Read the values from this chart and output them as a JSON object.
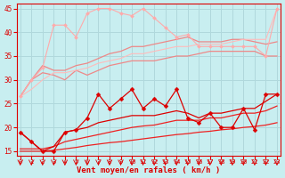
{
  "xlabel": "Vent moyen/en rafales ( km/h )",
  "bg_color": "#c8eef0",
  "grid_color": "#b0d8dc",
  "ylim": [
    14,
    46
  ],
  "xlim": [
    -0.3,
    23.3
  ],
  "yticks": [
    15,
    20,
    25,
    30,
    35,
    40,
    45
  ],
  "xticks": [
    0,
    1,
    2,
    3,
    4,
    5,
    6,
    7,
    8,
    9,
    10,
    11,
    12,
    13,
    14,
    15,
    16,
    17,
    18,
    19,
    20,
    21,
    22,
    23
  ],
  "series": [
    {
      "x": [
        0,
        1,
        2,
        3,
        4,
        5,
        6,
        7,
        8,
        9,
        10,
        11,
        12,
        13,
        14,
        15,
        16,
        17,
        18,
        19,
        20,
        21,
        22,
        23
      ],
      "y": [
        15.0,
        15.0,
        15.0,
        15.2,
        15.5,
        15.8,
        16.2,
        16.5,
        16.8,
        17.0,
        17.3,
        17.6,
        17.9,
        18.2,
        18.5,
        18.7,
        19.0,
        19.2,
        19.5,
        19.7,
        20.0,
        20.2,
        20.5,
        21.0
      ],
      "color": "#ee2222",
      "lw": 0.9,
      "marker": null,
      "ms": 0
    },
    {
      "x": [
        0,
        1,
        2,
        3,
        4,
        5,
        6,
        7,
        8,
        9,
        10,
        11,
        12,
        13,
        14,
        15,
        16,
        17,
        18,
        19,
        20,
        21,
        22,
        23
      ],
      "y": [
        15.5,
        15.5,
        15.5,
        16.0,
        17.0,
        17.5,
        18.0,
        18.5,
        19.0,
        19.5,
        20.0,
        20.3,
        20.5,
        21.0,
        21.5,
        21.5,
        21.5,
        22.0,
        22.0,
        22.5,
        23.0,
        23.0,
        23.5,
        24.5
      ],
      "color": "#ee2222",
      "lw": 0.9,
      "marker": null,
      "ms": 0
    },
    {
      "x": [
        0,
        1,
        2,
        3,
        4,
        5,
        6,
        7,
        8,
        9,
        10,
        11,
        12,
        13,
        14,
        15,
        16,
        17,
        18,
        19,
        20,
        21,
        22,
        23
      ],
      "y": [
        19.0,
        17.0,
        15.0,
        15.0,
        19.0,
        19.5,
        22.0,
        27.0,
        24.0,
        26.0,
        28.0,
        24.0,
        26.0,
        24.5,
        28.0,
        22.0,
        21.0,
        23.0,
        20.0,
        20.0,
        24.0,
        19.5,
        27.0,
        27.0
      ],
      "color": "#dd0000",
      "lw": 0.9,
      "marker": "D",
      "ms": 2.5
    },
    {
      "x": [
        0,
        1,
        2,
        3,
        4,
        5,
        6,
        7,
        8,
        9,
        10,
        11,
        12,
        13,
        14,
        15,
        16,
        17,
        18,
        19,
        20,
        21,
        22,
        23
      ],
      "y": [
        19.0,
        17.0,
        15.0,
        16.0,
        19.0,
        19.5,
        20.0,
        21.0,
        21.5,
        22.0,
        22.5,
        22.5,
        22.5,
        23.0,
        23.5,
        23.0,
        22.0,
        23.0,
        23.0,
        23.5,
        24.0,
        24.0,
        25.5,
        27.0
      ],
      "color": "#dd0000",
      "lw": 0.9,
      "marker": null,
      "ms": 0
    },
    {
      "x": [
        0,
        1,
        2,
        3,
        4,
        5,
        6,
        7,
        8,
        9,
        10,
        11,
        12,
        13,
        14,
        15,
        16,
        17,
        18,
        19,
        20,
        21,
        22,
        23
      ],
      "y": [
        26.5,
        30.0,
        31.5,
        31.0,
        30.0,
        32.0,
        31.0,
        32.0,
        33.0,
        33.5,
        34.0,
        34.0,
        34.0,
        34.5,
        35.0,
        35.0,
        35.5,
        36.0,
        36.0,
        36.0,
        36.0,
        36.0,
        35.0,
        35.0
      ],
      "color": "#ee8888",
      "lw": 0.9,
      "marker": null,
      "ms": 0
    },
    {
      "x": [
        0,
        1,
        2,
        3,
        4,
        5,
        6,
        7,
        8,
        9,
        10,
        11,
        12,
        13,
        14,
        15,
        16,
        17,
        18,
        19,
        20,
        21,
        22,
        23
      ],
      "y": [
        26.5,
        30.0,
        33.0,
        32.0,
        32.0,
        33.0,
        33.5,
        34.5,
        35.5,
        36.0,
        37.0,
        37.0,
        37.5,
        38.0,
        38.5,
        39.0,
        38.0,
        38.0,
        38.0,
        38.5,
        38.5,
        38.0,
        37.5,
        38.0
      ],
      "color": "#ee8888",
      "lw": 0.9,
      "marker": null,
      "ms": 0
    },
    {
      "x": [
        0,
        1,
        2,
        3,
        4,
        5,
        6,
        7,
        8,
        9,
        10,
        11,
        12,
        13,
        14,
        15,
        16,
        17,
        18,
        19,
        20,
        21,
        22,
        23
      ],
      "y": [
        26.5,
        28.0,
        30.0,
        31.5,
        31.5,
        32.0,
        32.5,
        33.5,
        34.0,
        34.5,
        35.5,
        35.5,
        36.0,
        36.5,
        37.0,
        37.0,
        37.5,
        37.5,
        37.5,
        38.0,
        38.5,
        38.5,
        38.5,
        45.0
      ],
      "color": "#ffbbbb",
      "lw": 0.8,
      "marker": null,
      "ms": 0
    },
    {
      "x": [
        0,
        1,
        2,
        3,
        4,
        5,
        6,
        7,
        8,
        9,
        10,
        11,
        12,
        13,
        14,
        15,
        16,
        17,
        18,
        19,
        20,
        21,
        22,
        23
      ],
      "y": [
        26.5,
        30.0,
        32.5,
        41.5,
        41.5,
        39.0,
        44.0,
        45.0,
        45.0,
        44.0,
        43.5,
        45.0,
        43.0,
        41.0,
        39.0,
        39.5,
        37.0,
        37.0,
        37.0,
        37.0,
        37.0,
        37.0,
        35.0,
        45.0
      ],
      "color": "#ffaaaa",
      "lw": 0.8,
      "marker": "D",
      "ms": 2.0
    }
  ]
}
